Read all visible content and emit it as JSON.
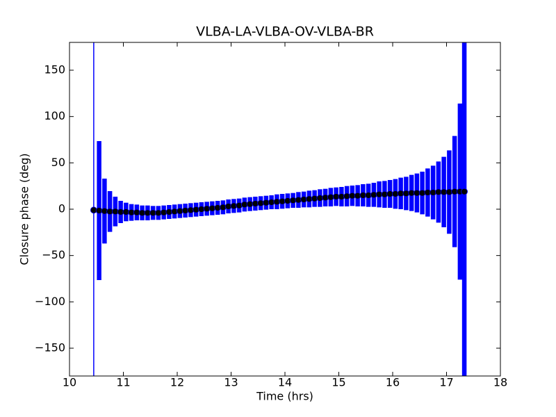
{
  "chart_data": {
    "type": "errorbar",
    "title": "VLBA-LA-VLBA-OV-VLBA-BR",
    "xlabel": "Time (hrs)",
    "ylabel": "Closure phase (deg)",
    "x": [
      10.45,
      10.55,
      10.65,
      10.75,
      10.85,
      10.95,
      11.05,
      11.15,
      11.25,
      11.35,
      11.45,
      11.55,
      11.65,
      11.75,
      11.85,
      11.95,
      12.05,
      12.15,
      12.25,
      12.35,
      12.45,
      12.55,
      12.65,
      12.75,
      12.85,
      12.95,
      13.05,
      13.15,
      13.25,
      13.35,
      13.45,
      13.55,
      13.65,
      13.75,
      13.85,
      13.95,
      14.05,
      14.15,
      14.25,
      14.35,
      14.45,
      14.55,
      14.65,
      14.75,
      14.85,
      14.95,
      15.05,
      15.15,
      15.25,
      15.35,
      15.45,
      15.55,
      15.65,
      15.75,
      15.85,
      15.95,
      16.05,
      16.15,
      16.25,
      16.35,
      16.45,
      16.55,
      16.65,
      16.75,
      16.85,
      16.95,
      17.05,
      17.15,
      17.25,
      17.33
    ],
    "series": [
      {
        "color": "#000000",
        "error_color": "#0000ff",
        "values": [
          -1,
          -1.5,
          -2,
          -2.5,
          -2.5,
          -3,
          -3,
          -3.5,
          -3.5,
          -4,
          -4,
          -4,
          -4,
          -3.5,
          -3,
          -2.5,
          -2,
          -1.5,
          -1,
          -0.5,
          0,
          0.5,
          1,
          1.5,
          2,
          3,
          3.5,
          4,
          5,
          5.5,
          6,
          6.5,
          7,
          7.5,
          8,
          8.5,
          9,
          9.5,
          10,
          10.5,
          11,
          11.5,
          12,
          12.5,
          13,
          13.5,
          13.5,
          14,
          14.5,
          14.5,
          15,
          15,
          15.5,
          16,
          16,
          16.5,
          16.5,
          17,
          17,
          17.5,
          17.5,
          17.5,
          18,
          18,
          18.5,
          18.5,
          18.5,
          19,
          19,
          19
        ],
        "errors": [
          200,
          75,
          35,
          22,
          16,
          12,
          10,
          9,
          8.5,
          8,
          8,
          7.5,
          7.5,
          7.5,
          7.5,
          7.5,
          7.5,
          7.5,
          7.5,
          7.5,
          7.5,
          7.5,
          7.5,
          7.5,
          7.5,
          7.5,
          7.5,
          7.5,
          7.5,
          7.5,
          7.5,
          7.5,
          7.5,
          7.5,
          8,
          8,
          8,
          8,
          8.5,
          8.5,
          9,
          9,
          9.5,
          9.5,
          10,
          10,
          10.5,
          11,
          11,
          11.5,
          12,
          12.5,
          13,
          14,
          14.5,
          15,
          16,
          17,
          18,
          19.5,
          21,
          23,
          26,
          29,
          33,
          38,
          45,
          60,
          95,
          250
        ]
      }
    ],
    "xlim": [
      10,
      18
    ],
    "ylim": [
      -180,
      180
    ],
    "xticks": [
      10,
      11,
      12,
      13,
      14,
      15,
      16,
      17,
      18
    ],
    "yticks": [
      {
        "value": -150,
        "label": "−150"
      },
      {
        "value": -100,
        "label": "−100"
      },
      {
        "value": -50,
        "label": "−50"
      },
      0,
      50,
      100,
      150
    ]
  }
}
